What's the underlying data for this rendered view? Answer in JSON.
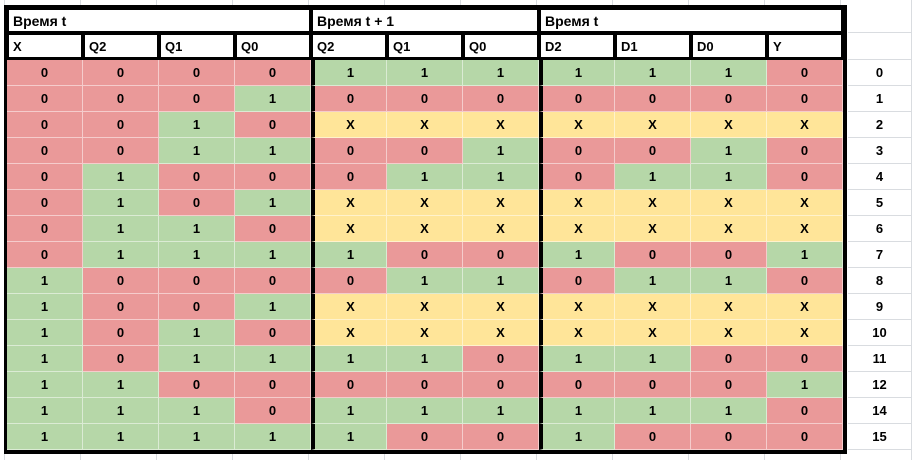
{
  "colors": {
    "cell_red": "#ea9999",
    "cell_green": "#b6d7a8",
    "cell_yellow": "#ffe599",
    "border_black": "#000000",
    "gridline": "#d9dce0"
  },
  "table": {
    "groups": [
      {
        "label": "Время t",
        "span": 4
      },
      {
        "label": "Время t + 1",
        "span": 3
      },
      {
        "label": "Время t",
        "span": 4
      }
    ],
    "column_headers": [
      "X",
      "Q2",
      "Q1",
      "Q0",
      "Q2",
      "Q1",
      "Q0",
      "D2",
      "D1",
      "D0",
      "Y"
    ],
    "rows": [
      {
        "label": "0",
        "cells": [
          [
            "0",
            "r"
          ],
          [
            "0",
            "r"
          ],
          [
            "0",
            "r"
          ],
          [
            "0",
            "r"
          ],
          [
            "1",
            "g"
          ],
          [
            "1",
            "g"
          ],
          [
            "1",
            "g"
          ],
          [
            "1",
            "g"
          ],
          [
            "1",
            "g"
          ],
          [
            "1",
            "g"
          ],
          [
            "0",
            "r"
          ]
        ]
      },
      {
        "label": "1",
        "cells": [
          [
            "0",
            "r"
          ],
          [
            "0",
            "r"
          ],
          [
            "0",
            "r"
          ],
          [
            "1",
            "g"
          ],
          [
            "0",
            "r"
          ],
          [
            "0",
            "r"
          ],
          [
            "0",
            "r"
          ],
          [
            "0",
            "r"
          ],
          [
            "0",
            "r"
          ],
          [
            "0",
            "r"
          ],
          [
            "0",
            "r"
          ]
        ]
      },
      {
        "label": "2",
        "cells": [
          [
            "0",
            "r"
          ],
          [
            "0",
            "r"
          ],
          [
            "1",
            "g"
          ],
          [
            "0",
            "r"
          ],
          [
            "X",
            "y"
          ],
          [
            "X",
            "y"
          ],
          [
            "X",
            "y"
          ],
          [
            "X",
            "y"
          ],
          [
            "X",
            "y"
          ],
          [
            "X",
            "y"
          ],
          [
            "X",
            "y"
          ]
        ]
      },
      {
        "label": "3",
        "cells": [
          [
            "0",
            "r"
          ],
          [
            "0",
            "r"
          ],
          [
            "1",
            "g"
          ],
          [
            "1",
            "g"
          ],
          [
            "0",
            "r"
          ],
          [
            "0",
            "r"
          ],
          [
            "1",
            "g"
          ],
          [
            "0",
            "r"
          ],
          [
            "0",
            "r"
          ],
          [
            "1",
            "g"
          ],
          [
            "0",
            "r"
          ]
        ]
      },
      {
        "label": "4",
        "cells": [
          [
            "0",
            "r"
          ],
          [
            "1",
            "g"
          ],
          [
            "0",
            "r"
          ],
          [
            "0",
            "r"
          ],
          [
            "0",
            "r"
          ],
          [
            "1",
            "g"
          ],
          [
            "1",
            "g"
          ],
          [
            "0",
            "r"
          ],
          [
            "1",
            "g"
          ],
          [
            "1",
            "g"
          ],
          [
            "0",
            "r"
          ]
        ]
      },
      {
        "label": "5",
        "cells": [
          [
            "0",
            "r"
          ],
          [
            "1",
            "g"
          ],
          [
            "0",
            "r"
          ],
          [
            "1",
            "g"
          ],
          [
            "X",
            "y"
          ],
          [
            "X",
            "y"
          ],
          [
            "X",
            "y"
          ],
          [
            "X",
            "y"
          ],
          [
            "X",
            "y"
          ],
          [
            "X",
            "y"
          ],
          [
            "X",
            "y"
          ]
        ]
      },
      {
        "label": "6",
        "cells": [
          [
            "0",
            "r"
          ],
          [
            "1",
            "g"
          ],
          [
            "1",
            "g"
          ],
          [
            "0",
            "r"
          ],
          [
            "X",
            "y"
          ],
          [
            "X",
            "y"
          ],
          [
            "X",
            "y"
          ],
          [
            "X",
            "y"
          ],
          [
            "X",
            "y"
          ],
          [
            "X",
            "y"
          ],
          [
            "X",
            "y"
          ]
        ]
      },
      {
        "label": "7",
        "cells": [
          [
            "0",
            "r"
          ],
          [
            "1",
            "g"
          ],
          [
            "1",
            "g"
          ],
          [
            "1",
            "g"
          ],
          [
            "1",
            "g"
          ],
          [
            "0",
            "r"
          ],
          [
            "0",
            "r"
          ],
          [
            "1",
            "g"
          ],
          [
            "0",
            "r"
          ],
          [
            "0",
            "r"
          ],
          [
            "1",
            "g"
          ]
        ]
      },
      {
        "label": "8",
        "cells": [
          [
            "1",
            "g"
          ],
          [
            "0",
            "r"
          ],
          [
            "0",
            "r"
          ],
          [
            "0",
            "r"
          ],
          [
            "0",
            "r"
          ],
          [
            "1",
            "g"
          ],
          [
            "1",
            "g"
          ],
          [
            "0",
            "r"
          ],
          [
            "1",
            "g"
          ],
          [
            "1",
            "g"
          ],
          [
            "0",
            "r"
          ]
        ]
      },
      {
        "label": "9",
        "cells": [
          [
            "1",
            "g"
          ],
          [
            "0",
            "r"
          ],
          [
            "0",
            "r"
          ],
          [
            "1",
            "g"
          ],
          [
            "X",
            "y"
          ],
          [
            "X",
            "y"
          ],
          [
            "X",
            "y"
          ],
          [
            "X",
            "y"
          ],
          [
            "X",
            "y"
          ],
          [
            "X",
            "y"
          ],
          [
            "X",
            "y"
          ]
        ]
      },
      {
        "label": "10",
        "cells": [
          [
            "1",
            "g"
          ],
          [
            "0",
            "r"
          ],
          [
            "1",
            "g"
          ],
          [
            "0",
            "r"
          ],
          [
            "X",
            "y"
          ],
          [
            "X",
            "y"
          ],
          [
            "X",
            "y"
          ],
          [
            "X",
            "y"
          ],
          [
            "X",
            "y"
          ],
          [
            "X",
            "y"
          ],
          [
            "X",
            "y"
          ]
        ]
      },
      {
        "label": "11",
        "cells": [
          [
            "1",
            "g"
          ],
          [
            "0",
            "r"
          ],
          [
            "1",
            "g"
          ],
          [
            "1",
            "g"
          ],
          [
            "1",
            "g"
          ],
          [
            "1",
            "g"
          ],
          [
            "0",
            "r"
          ],
          [
            "1",
            "g"
          ],
          [
            "1",
            "g"
          ],
          [
            "0",
            "r"
          ],
          [
            "0",
            "r"
          ]
        ]
      },
      {
        "label": "12",
        "cells": [
          [
            "1",
            "g"
          ],
          [
            "1",
            "g"
          ],
          [
            "0",
            "r"
          ],
          [
            "0",
            "r"
          ],
          [
            "0",
            "r"
          ],
          [
            "0",
            "r"
          ],
          [
            "0",
            "r"
          ],
          [
            "0",
            "r"
          ],
          [
            "0",
            "r"
          ],
          [
            "0",
            "r"
          ],
          [
            "1",
            "g"
          ]
        ]
      },
      {
        "label": "14",
        "cells": [
          [
            "1",
            "g"
          ],
          [
            "1",
            "g"
          ],
          [
            "1",
            "g"
          ],
          [
            "0",
            "r"
          ],
          [
            "1",
            "g"
          ],
          [
            "1",
            "g"
          ],
          [
            "1",
            "g"
          ],
          [
            "1",
            "g"
          ],
          [
            "1",
            "g"
          ],
          [
            "1",
            "g"
          ],
          [
            "0",
            "r"
          ]
        ]
      },
      {
        "label": "15",
        "cells": [
          [
            "1",
            "g"
          ],
          [
            "1",
            "g"
          ],
          [
            "1",
            "g"
          ],
          [
            "1",
            "g"
          ],
          [
            "1",
            "g"
          ],
          [
            "0",
            "r"
          ],
          [
            "0",
            "r"
          ],
          [
            "1",
            "g"
          ],
          [
            "0",
            "r"
          ],
          [
            "0",
            "r"
          ],
          [
            "0",
            "r"
          ]
        ]
      }
    ]
  }
}
